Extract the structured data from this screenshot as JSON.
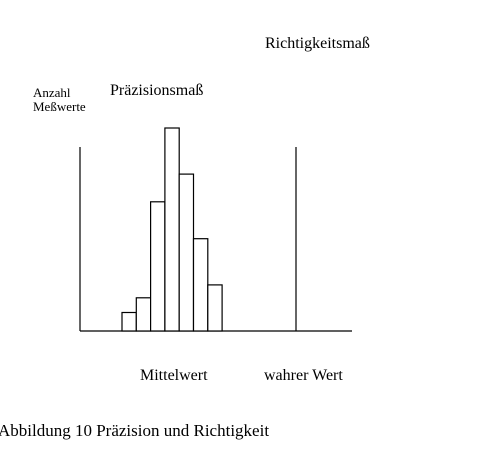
{
  "labels": {
    "richtigkeitsmass": "Richtigkeitsmaß",
    "anzahl_line1": "Anzahl",
    "anzahl_line2": "Meßwerte",
    "praezisionsmass": "Präzisionsmaß",
    "mittelwert": "Mittelwert",
    "wahrer_wert": "wahrer Wert",
    "caption": "Abbildung 10   Präzision und Richtigkeit"
  },
  "histogram": {
    "bar_values": [
      1,
      1.8,
      7,
      11,
      8.5,
      5,
      2.5
    ],
    "max_value": 11
  },
  "colors": {
    "stroke": "#000000",
    "background": "#ffffff"
  }
}
